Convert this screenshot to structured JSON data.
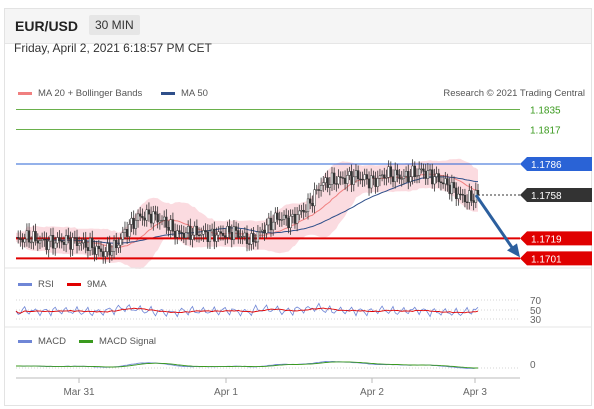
{
  "header": {
    "pair": "EUR/USD",
    "timeframe": "30 MIN"
  },
  "timestamp": "Friday, April 2, 2021 6:18:57 PM CET",
  "legend": {
    "ma20": "MA 20 + Bollinger Bands",
    "ma50": "MA 50",
    "credit": "Research © 2021 Trading Central"
  },
  "colors": {
    "support": "#e00000",
    "resistance": "#2a63d6",
    "target": "#6ab04c",
    "ma20": "#f08080",
    "ma50": "#2f4f8a",
    "band": "#f9cfd6",
    "arrow": "#2c5f9e"
  },
  "chart_data": [
    {
      "type": "candlestick",
      "title": "",
      "ylim": [
        1.1695,
        1.184
      ],
      "x_tick_labels": [
        "Mar 31",
        "Apr 1",
        "Apr 2",
        "Apr 3"
      ],
      "levels": [
        {
          "value": 1.1835,
          "label": "1.1835",
          "kind": "target"
        },
        {
          "value": 1.1817,
          "label": "1.1817",
          "kind": "target"
        },
        {
          "value": 1.1786,
          "label": "1.1786",
          "kind": "resistance"
        },
        {
          "value": 1.1758,
          "label": "1.1758",
          "kind": "last"
        },
        {
          "value": 1.1719,
          "label": "1.1719",
          "kind": "support"
        },
        {
          "value": 1.1701,
          "label": "1.1701",
          "kind": "support"
        }
      ],
      "price_path": [
        [
          0,
          1.1717
        ],
        [
          6,
          1.172
        ],
        [
          14,
          1.1715
        ],
        [
          22,
          1.1717
        ],
        [
          28,
          1.1716
        ],
        [
          34,
          1.1712
        ],
        [
          40,
          1.1706
        ],
        [
          46,
          1.1712
        ],
        [
          50,
          1.1725
        ],
        [
          56,
          1.1738
        ],
        [
          62,
          1.174
        ],
        [
          68,
          1.1734
        ],
        [
          74,
          1.1723
        ],
        [
          82,
          1.1724
        ],
        [
          92,
          1.1722
        ],
        [
          100,
          1.1725
        ],
        [
          108,
          1.1716
        ],
        [
          114,
          1.1728
        ],
        [
          120,
          1.1738
        ],
        [
          126,
          1.1735
        ],
        [
          134,
          1.1748
        ],
        [
          140,
          1.1768
        ],
        [
          148,
          1.1772
        ],
        [
          156,
          1.1775
        ],
        [
          164,
          1.177
        ],
        [
          170,
          1.1777
        ],
        [
          178,
          1.1774
        ],
        [
          186,
          1.178
        ],
        [
          192,
          1.1774
        ],
        [
          199,
          1.1766
        ],
        [
          203,
          1.1758
        ],
        [
          207,
          1.1754
        ],
        [
          212,
          1.1758
        ]
      ],
      "projection": {
        "from": 1.1758,
        "to": 1.1701
      }
    },
    {
      "type": "line",
      "title": "RSI",
      "series": [
        {
          "name": "RSI"
        },
        {
          "name": "9MA"
        }
      ],
      "y_tick_labels": [
        "70",
        "50",
        "30"
      ]
    },
    {
      "type": "line",
      "title": "MACD",
      "series": [
        {
          "name": "MACD"
        },
        {
          "name": "MACD Signal"
        }
      ],
      "y_tick_labels": [
        "0"
      ]
    }
  ]
}
